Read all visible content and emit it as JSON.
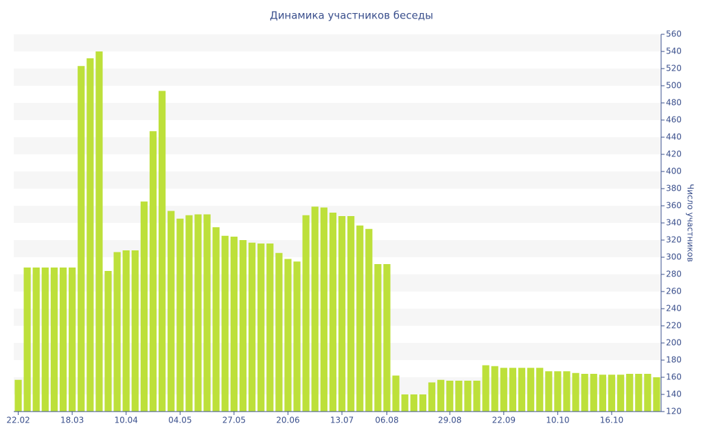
{
  "chart_data": {
    "type": "bar",
    "title": "Динамика участников беседы",
    "y_label": "Число участников",
    "categories": [
      "22.02",
      null,
      null,
      null,
      null,
      null,
      "18.03",
      null,
      null,
      null,
      null,
      null,
      "10.04",
      null,
      null,
      null,
      null,
      null,
      "04.05",
      null,
      null,
      null,
      null,
      null,
      "27.05",
      null,
      null,
      null,
      null,
      null,
      "20.06",
      null,
      null,
      null,
      null,
      null,
      "13.07",
      null,
      null,
      null,
      null,
      "06.08",
      null,
      null,
      null,
      null,
      null,
      null,
      "29.08",
      null,
      null,
      null,
      null,
      null,
      "22.09",
      null,
      null,
      null,
      null,
      null,
      "10.10",
      null,
      null,
      null,
      null,
      null,
      "16.10",
      null,
      null,
      null,
      null,
      null
    ],
    "values": [
      157,
      288,
      288,
      288,
      288,
      288,
      288,
      523,
      532,
      540,
      284,
      306,
      308,
      308,
      365,
      447,
      494,
      354,
      345,
      349,
      350,
      350,
      335,
      325,
      324,
      320,
      317,
      316,
      316,
      305,
      298,
      295,
      349,
      359,
      358,
      352,
      348,
      348,
      337,
      333,
      292,
      292,
      162,
      140,
      140,
      140,
      154,
      157,
      156,
      156,
      156,
      156,
      174,
      173,
      171,
      171,
      171,
      171,
      171,
      167,
      167,
      167,
      165,
      164,
      164,
      163,
      163,
      163,
      164,
      164,
      164,
      160
    ],
    "color": "#bde03a",
    "ylim": [
      120,
      560
    ],
    "yticks": [
      120,
      140,
      160,
      180,
      200,
      220,
      240,
      260,
      280,
      300,
      320,
      340,
      360,
      380,
      400,
      420,
      440,
      460,
      480,
      500,
      520,
      540,
      560
    ],
    "grid": "bands",
    "y_axis_side": "right"
  }
}
